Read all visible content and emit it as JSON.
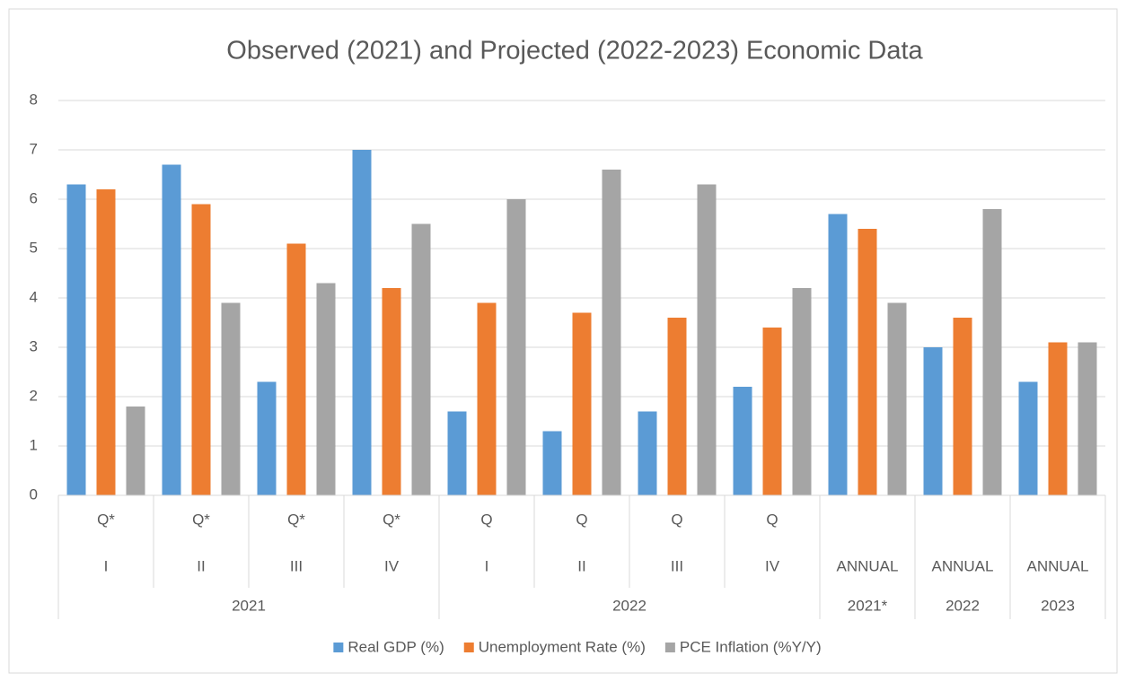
{
  "chart_data": {
    "type": "bar",
    "title": "Observed (2021) and Projected (2022-2023) Economic Data",
    "category_prefixes": [
      "Q*",
      "Q*",
      "Q*",
      "Q*",
      "Q",
      "Q",
      "Q",
      "Q",
      null,
      null,
      null
    ],
    "categories": [
      "I",
      "II",
      "III",
      "IV",
      "I",
      "II",
      "III",
      "IV",
      "ANNUAL",
      "ANNUAL",
      "ANNUAL"
    ],
    "category_groups": [
      {
        "label": "2021",
        "count": 4
      },
      {
        "label": "2022",
        "count": 4
      },
      {
        "label": "2021*",
        "count": 1
      },
      {
        "label": "2022",
        "count": 1
      },
      {
        "label": "2023",
        "count": 1
      }
    ],
    "series": [
      {
        "name": "Real GDP (%)",
        "color": "#5b9bd5",
        "values": [
          6.3,
          6.7,
          2.3,
          7.0,
          1.7,
          1.3,
          1.7,
          2.2,
          5.7,
          3.0,
          2.3
        ]
      },
      {
        "name": "Unemployment Rate (%)",
        "color": "#ed7d31",
        "values": [
          6.2,
          5.9,
          5.1,
          4.2,
          3.9,
          3.7,
          3.6,
          3.4,
          5.4,
          3.6,
          3.1
        ]
      },
      {
        "name": "PCE Inflation (%Y/Y)",
        "color": "#a5a5a5",
        "values": [
          1.8,
          3.9,
          4.3,
          5.5,
          6.0,
          6.6,
          6.3,
          4.2,
          3.9,
          5.8,
          3.1
        ]
      }
    ],
    "ylim": [
      0,
      8
    ],
    "yticks": [
      0,
      1,
      2,
      3,
      4,
      5,
      6,
      7,
      8
    ],
    "grid": true,
    "legend": "bottom"
  }
}
